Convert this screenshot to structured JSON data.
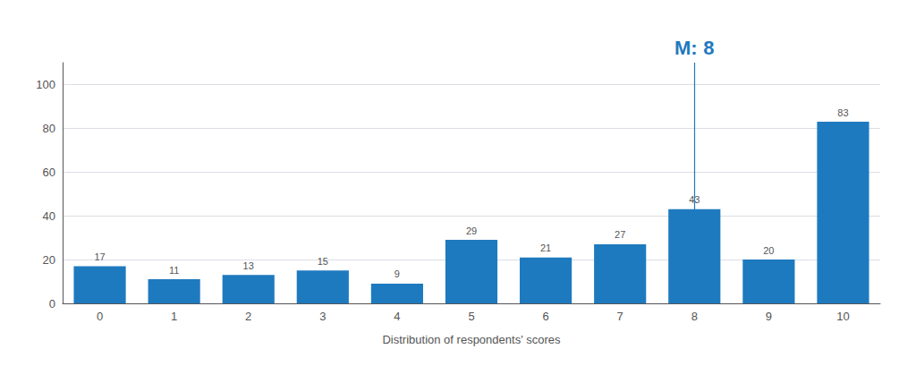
{
  "chart_data": {
    "type": "bar",
    "x_label": "Distribution of respondents' scores",
    "categories": [
      "0",
      "1",
      "2",
      "3",
      "4",
      "5",
      "6",
      "7",
      "8",
      "9",
      "10"
    ],
    "values": [
      17,
      11,
      13,
      15,
      9,
      29,
      21,
      27,
      43,
      20,
      83
    ],
    "color": "#1e7abf",
    "ylim": [
      0,
      110
    ],
    "yticks": [
      0,
      20,
      40,
      60,
      80,
      100
    ],
    "grid": true,
    "data_labels": true,
    "median": {
      "category": "8",
      "label": "M:",
      "value_label": "8",
      "color": "#1e7abf"
    }
  }
}
